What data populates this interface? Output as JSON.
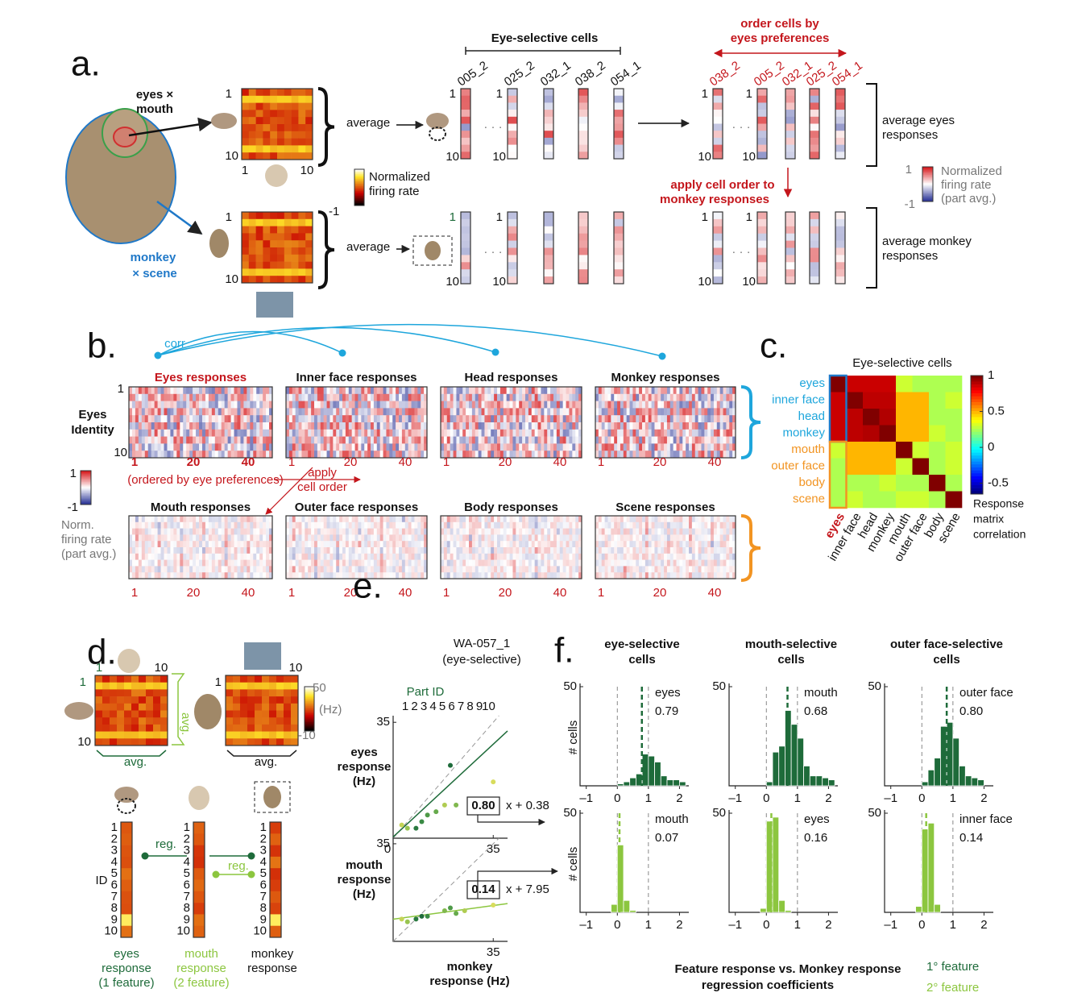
{
  "panel_a": {
    "label": "a.",
    "eyes_mouth": [
      "eyes ×",
      "mouth"
    ],
    "monkey_scene": [
      "monkey",
      "× scene"
    ],
    "average": "average",
    "tick_first": "1",
    "tick_last": "10",
    "colorbar": [
      "Normalized",
      "firing rate"
    ],
    "colorbar_min": "-1",
    "cells_title": "Eye-selective cells",
    "cells": [
      "005_2",
      "025_2",
      "032_1",
      "038_2",
      "054_1"
    ],
    "ordered_cells": [
      "038_2",
      "005_2",
      "032_1",
      "025_2",
      "054_1"
    ],
    "ellipsis": "· · ·",
    "order_note": [
      "order cells by",
      "eyes preferences"
    ],
    "apply_note": [
      "apply cell order to",
      "monkey responses"
    ],
    "eyes_avg": [
      "average eyes",
      "responses"
    ],
    "monkey_avg": [
      "average monkey",
      "responses"
    ],
    "part_colorbar": [
      "Normalized",
      "firing rate",
      "(part avg.)"
    ],
    "part_colorbar_max": "1",
    "part_colorbar_min": "-1"
  },
  "panel_b": {
    "label": "b.",
    "corr": "corr",
    "top_titles": [
      "Eyes responses",
      "Inner face responses",
      "Head responses",
      "Monkey responses"
    ],
    "bottom_titles": [
      "Mouth responses",
      "Outer face responses",
      "Body responses",
      "Scene responses"
    ],
    "y_label": [
      "Eyes",
      "Identity"
    ],
    "y_ticks": [
      "1",
      "10"
    ],
    "x_ticks": [
      "1",
      "20",
      "40"
    ],
    "order_note": "(ordered by eye preferences)",
    "apply_note": [
      "apply",
      "cell order"
    ],
    "colorbar_max": "1",
    "colorbar_min": "-1",
    "colorbar": [
      "Norm.",
      "firing rate",
      "(part avg.)"
    ]
  },
  "panel_c": {
    "label": "c."
  },
  "panel_d": {
    "label": "d.",
    "ticks": [
      "1",
      "10"
    ],
    "avg": "avg.",
    "colorbar_max": "50",
    "colorbar_unit": "(Hz)",
    "colorbar_min": "-10",
    "reg": "reg.",
    "id": "ID",
    "ids": [
      "1",
      "2",
      "3",
      "4",
      "5",
      "6",
      "7",
      "8",
      "9",
      "10"
    ],
    "captions": [
      [
        "eyes",
        "response",
        "(1   feature)"
      ],
      [
        "mouth",
        "response",
        "(2   feature)"
      ],
      [
        "monkey",
        "response"
      ]
    ]
  },
  "panel_e": {
    "label": "e.",
    "title": [
      "WA-057_1",
      "(eye-selective)"
    ],
    "legend_title": "Part ID",
    "parts": [
      "1",
      "2",
      "3",
      "4",
      "5",
      "6",
      "7",
      "8",
      "9",
      "10"
    ],
    "part_colors": [
      "#1e6b3a",
      "#2a7a40",
      "#3a8a44",
      "#4e9a48",
      "#66aa4c",
      "#80b84e",
      "#98c450",
      "#b0cc52",
      "#c4d456",
      "#d8dc5c"
    ],
    "x_label": [
      "monkey",
      "response (Hz)"
    ]
  },
  "panel_f": {
    "label": "f.",
    "y_label": "# cells",
    "legend": [
      "Feature response vs. Monkey response",
      "regression coefficients"
    ],
    "feature_legend": [
      "1° feature",
      "2° feature"
    ]
  },
  "chart_data": [
    {
      "type": "heatmap",
      "title": "Eye-selective cells",
      "categories": [
        "eyes",
        "inner face",
        "head",
        "monkey",
        "mouth",
        "outer face",
        "body",
        "scene"
      ],
      "values": [
        [
          1,
          0.88,
          0.88,
          0.88,
          0.3,
          0.25,
          0.25,
          0.25
        ],
        [
          0.88,
          1,
          0.9,
          0.9,
          0.5,
          0.5,
          0.25,
          0.3
        ],
        [
          0.88,
          0.9,
          1,
          0.92,
          0.5,
          0.5,
          0.25,
          0.25
        ],
        [
          0.88,
          0.9,
          0.92,
          1,
          0.5,
          0.5,
          0.3,
          0.25
        ],
        [
          0.3,
          0.5,
          0.5,
          0.5,
          1,
          0.3,
          0.25,
          0.3
        ],
        [
          0.25,
          0.5,
          0.5,
          0.5,
          0.3,
          1,
          0.25,
          0.3
        ],
        [
          0.25,
          0.25,
          0.25,
          0.3,
          0.25,
          0.25,
          1,
          0.25
        ],
        [
          0.25,
          0.3,
          0.25,
          0.25,
          0.3,
          0.3,
          0.25,
          1
        ]
      ],
      "zlim": [
        -0.65,
        1
      ],
      "zticks": [
        1,
        0.5,
        0,
        -0.5
      ],
      "colorbar_label": [
        "Response",
        "matrix",
        "correlation"
      ]
    },
    {
      "type": "scatter",
      "y_label": [
        "eyes",
        "response",
        "(Hz)"
      ],
      "x": [
        20,
        8,
        10,
        12,
        15,
        22,
        5,
        18,
        3,
        35
      ],
      "values": [
        22,
        3,
        5,
        7,
        8,
        10,
        3,
        10,
        4,
        17
      ],
      "xlim": [
        0,
        40
      ],
      "ylim": [
        0,
        37
      ],
      "xticks": [
        0,
        35
      ],
      "yticks": [
        35
      ],
      "slope": 0.8,
      "slope_label": "0.80",
      "intercept": 0.38,
      "intercept_label": "x + 0.38",
      "color": "#1e6b3a"
    },
    {
      "type": "scatter",
      "y_label": [
        "mouth",
        "response",
        "(Hz)"
      ],
      "x": [
        10,
        8,
        12,
        20,
        22,
        18,
        5,
        25,
        3,
        35
      ],
      "values": [
        9,
        8,
        9,
        12,
        10,
        11,
        7,
        11,
        8,
        13
      ],
      "xlim": [
        0,
        40
      ],
      "ylim": [
        0,
        37
      ],
      "xticks": [
        35
      ],
      "yticks": [
        35
      ],
      "slope": 0.14,
      "slope_label": "0.14",
      "intercept": 7.95,
      "intercept_label": "x + 7.95",
      "color": "#8cc63f"
    },
    {
      "type": "histogram",
      "title": [
        "eye-selective",
        "cells"
      ],
      "feature": "eyes",
      "coef": 0.79,
      "coef_label": "0.79",
      "color": "#1e6b3a",
      "bins": [
        -0.2,
        0,
        0.2,
        0.4,
        0.6,
        0.8,
        1,
        1.2,
        1.4,
        1.6,
        1.8,
        2,
        2.2
      ],
      "counts": [
        0,
        1,
        2,
        4,
        6,
        16,
        15,
        12,
        5,
        3,
        3,
        2
      ],
      "xlim": [
        -1.2,
        2.3
      ],
      "xticks": [
        {
          "value": -1,
          "label": "–1"
        },
        0,
        1,
        2
      ],
      "ylim": [
        0,
        50
      ],
      "yticks": [
        50
      ]
    },
    {
      "type": "histogram",
      "title": [
        "mouth-selective",
        "cells"
      ],
      "feature": "mouth",
      "coef": 0.68,
      "coef_label": "0.68",
      "color": "#1e6b3a",
      "bins": [
        -0.2,
        0,
        0.2,
        0.4,
        0.6,
        0.8,
        1,
        1.2,
        1.4,
        1.6,
        1.8,
        2,
        2.2
      ],
      "counts": [
        0,
        2,
        17,
        20,
        38,
        31,
        24,
        10,
        5,
        5,
        4,
        3
      ],
      "xlim": [
        -1.2,
        2.3
      ],
      "xticks": [
        {
          "value": -1,
          "label": "–1"
        },
        0,
        1,
        2
      ],
      "ylim": [
        0,
        50
      ],
      "yticks": [
        50
      ]
    },
    {
      "type": "histogram",
      "title": [
        "outer face-selective",
        "cells"
      ],
      "feature": "outer face",
      "coef": 0.8,
      "coef_label": "0.80",
      "color": "#1e6b3a",
      "bins": [
        -0.2,
        0,
        0.2,
        0.4,
        0.6,
        0.8,
        1,
        1.2,
        1.4,
        1.6,
        1.8,
        2,
        2.2
      ],
      "counts": [
        0,
        2,
        8,
        14,
        30,
        32,
        24,
        10,
        5,
        4,
        3,
        0
      ],
      "xlim": [
        -1.2,
        2.3
      ],
      "xticks": [
        {
          "value": -1,
          "label": "–1"
        },
        0,
        1,
        2
      ],
      "ylim": [
        0,
        50
      ],
      "yticks": [
        50
      ]
    },
    {
      "type": "histogram",
      "feature": "mouth",
      "coef": 0.07,
      "coef_label": "0.07",
      "color": "#8cc63f",
      "bins": [
        -0.2,
        0,
        0.2,
        0.4,
        0.6,
        0.8,
        1,
        1.2,
        1.4,
        1.6,
        1.8,
        2,
        2.2
      ],
      "counts": [
        4,
        34,
        6,
        1,
        0,
        0,
        0,
        0,
        0,
        0,
        0,
        0
      ],
      "xlim": [
        -1.2,
        2.3
      ],
      "xticks": [
        {
          "value": -1,
          "label": "–1"
        },
        0,
        1,
        2
      ],
      "ylim": [
        0,
        50
      ],
      "yticks": [
        50
      ]
    },
    {
      "type": "histogram",
      "feature": "eyes",
      "coef": 0.16,
      "coef_label": "0.16",
      "color": "#8cc63f",
      "bins": [
        -0.2,
        0,
        0.2,
        0.4,
        0.6,
        0.8,
        1,
        1.2,
        1.4,
        1.6,
        1.8,
        2,
        2.2
      ],
      "counts": [
        2,
        46,
        48,
        6,
        1,
        0,
        0,
        0,
        0,
        0,
        0,
        0
      ],
      "xlim": [
        -1.2,
        2.3
      ],
      "xticks": [
        {
          "value": -1,
          "label": "–1"
        },
        0,
        1,
        2
      ],
      "ylim": [
        0,
        50
      ],
      "yticks": [
        50
      ]
    },
    {
      "type": "histogram",
      "feature": "inner face",
      "coef": 0.14,
      "coef_label": "0.14",
      "color": "#8cc63f",
      "bins": [
        -0.2,
        0,
        0.2,
        0.4,
        0.6,
        0.8,
        1,
        1.2,
        1.4,
        1.6,
        1.8,
        2,
        2.2
      ],
      "counts": [
        3,
        42,
        45,
        4,
        0,
        0,
        0,
        0,
        0,
        0,
        0,
        0
      ],
      "xlim": [
        -1.2,
        2.3
      ],
      "xticks": [
        {
          "value": -1,
          "label": "–1"
        },
        0,
        1,
        2
      ],
      "ylim": [
        0,
        50
      ],
      "yticks": [
        50
      ]
    }
  ]
}
